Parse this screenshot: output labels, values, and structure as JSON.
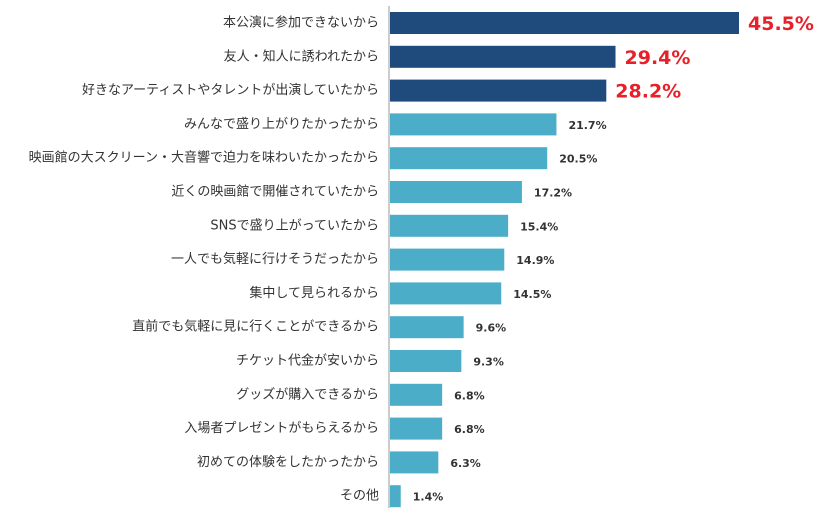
{
  "chart_data": {
    "type": "bar",
    "orientation": "horizontal",
    "categories": [
      "本公演に参加できないから",
      "友人・知人に誘われたから",
      "好きなアーティストやタレントが出演していたから",
      "みんなで盛り上がりたかったから",
      "映画館の大スクリーン・大音響で迫力を味わいたかったから",
      "近くの映画館で開催されていたから",
      "SNSで盛り上がっていたから",
      "一人でも気軽に行けそうだったから",
      "集中して見られるから",
      "直前でも気軽に見に行くことができるから",
      "チケット代金が安いから",
      "グッズが購入できるから",
      "入場者プレゼントがもらえるから",
      "初めての体験をしたかったから",
      "その他"
    ],
    "values": [
      45.5,
      29.4,
      28.2,
      21.7,
      20.5,
      17.2,
      15.4,
      14.9,
      14.5,
      9.6,
      9.3,
      6.8,
      6.8,
      6.3,
      1.4
    ],
    "value_labels": [
      "45.5%",
      "29.4%",
      "28.2%",
      "21.7%",
      "20.5%",
      "17.2%",
      "15.4%",
      "14.9%",
      "14.5%",
      "9.6%",
      "9.3%",
      "6.8%",
      "6.8%",
      "6.3%",
      "1.4%"
    ],
    "highlight_top_n": 3,
    "xlim": [
      0,
      45.5
    ],
    "grid": false,
    "legend": "none",
    "title": "",
    "xlabel": "",
    "ylabel": ""
  },
  "colors": {
    "highlight_bar": "#1f4a7c",
    "normal_bar": "#4badc8",
    "highlight_value": "#e8202a",
    "normal_value": "#333333",
    "axis_line": "#999999",
    "label_text": "#333333"
  }
}
